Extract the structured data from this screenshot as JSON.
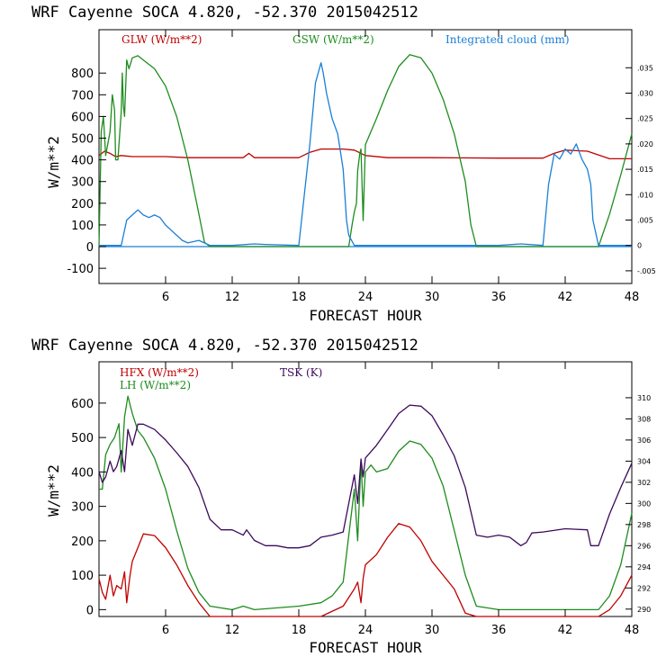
{
  "colors": {
    "red": "#c00000",
    "green": "#1e8c1e",
    "blue": "#1a7fd6",
    "purple": "#3c0a5a",
    "axis": "#000000"
  },
  "chart_data": [
    {
      "type": "line",
      "title": "WRF  Cayenne SOCA   4.820, -52.370  2015042512",
      "xlabel": "FORECAST HOUR",
      "ylabel": "W/m**2",
      "xlim": [
        0,
        48
      ],
      "ylim": [
        -170,
        1000
      ],
      "xticks": [
        6,
        12,
        18,
        24,
        30,
        36,
        42,
        48
      ],
      "yticks": [
        -100,
        0,
        100,
        200,
        300,
        400,
        500,
        600,
        700,
        800
      ],
      "y2lim": [
        -0.0075,
        0.0425
      ],
      "y2ticks": [
        -0.005,
        0,
        0.005,
        0.01,
        0.015,
        0.02,
        0.025,
        0.03,
        0.035
      ],
      "y2ticklabels": [
        "-.005",
        "0",
        ".005",
        ".010",
        ".015",
        ".020",
        ".025",
        ".030",
        ".035"
      ],
      "series": [
        {
          "name": "GLW (W/m**2)",
          "color": "red",
          "axis": "left",
          "x": [
            0,
            0.5,
            1,
            1.5,
            2,
            3,
            6,
            8,
            12,
            13,
            13.5,
            14,
            18,
            19,
            20,
            22,
            23,
            24,
            26,
            30,
            36,
            40,
            41,
            42,
            44,
            46,
            48
          ],
          "y": [
            420,
            440,
            430,
            415,
            420,
            415,
            415,
            410,
            410,
            410,
            430,
            410,
            410,
            435,
            450,
            450,
            445,
            420,
            410,
            410,
            408,
            408,
            430,
            445,
            440,
            405,
            405
          ]
        },
        {
          "name": "GSW (W/m**2)",
          "color": "green",
          "axis": "left",
          "x": [
            0,
            0.2,
            0.4,
            0.6,
            1,
            1.2,
            1.4,
            1.5,
            1.7,
            2,
            2.1,
            2.2,
            2.3,
            2.5,
            2.7,
            3,
            3.5,
            4,
            5,
            6,
            7,
            8,
            9,
            9.5,
            10,
            12,
            18,
            19,
            20,
            21,
            21.5,
            22,
            22.2,
            22.5,
            22.8,
            23,
            23.2,
            23.3,
            23.5,
            23.6,
            23.8,
            24,
            25,
            26,
            27,
            28,
            29,
            30,
            31,
            32,
            33,
            33.5,
            34,
            36,
            44,
            45,
            46,
            47,
            48
          ],
          "y": [
            0,
            530,
            600,
            420,
            530,
            700,
            630,
            400,
            400,
            620,
            800,
            650,
            600,
            860,
            820,
            870,
            880,
            860,
            820,
            740,
            600,
            400,
            150,
            20,
            0,
            0,
            0,
            0,
            0,
            0,
            0,
            0,
            0,
            0,
            100,
            160,
            200,
            350,
            430,
            450,
            120,
            470,
            590,
            720,
            830,
            885,
            870,
            800,
            680,
            520,
            300,
            100,
            0,
            0,
            0,
            0,
            150,
            330,
            520
          ]
        },
        {
          "name": "Integrated cloud (mm)",
          "color": "blue",
          "axis": "right",
          "x": [
            0,
            2,
            2.5,
            3,
            3.5,
            4,
            4.5,
            5,
            5.5,
            6,
            6.5,
            7,
            7.5,
            8,
            9,
            10,
            12,
            14,
            15,
            18,
            19,
            19.5,
            20,
            20.2,
            20.5,
            21,
            21.5,
            22,
            22.3,
            22.5,
            23,
            24,
            36,
            38,
            40,
            40.5,
            41,
            41.5,
            42,
            42.5,
            43,
            43.5,
            44,
            44.3,
            44.5,
            45,
            48
          ],
          "y": [
            0,
            0,
            0.005,
            0.006,
            0.007,
            0.006,
            0.0055,
            0.006,
            0.0055,
            0.004,
            0.003,
            0.002,
            0.001,
            0.0005,
            0.001,
            0,
            0,
            0.0003,
            0.0002,
            0,
            0.02,
            0.032,
            0.036,
            0.034,
            0.03,
            0.025,
            0.022,
            0.015,
            0.005,
            0.002,
            0,
            0,
            0,
            0.0003,
            0,
            0.012,
            0.018,
            0.017,
            0.019,
            0.018,
            0.02,
            0.017,
            0.015,
            0.012,
            0.005,
            0,
            0
          ]
        }
      ]
    },
    {
      "type": "line",
      "title": "WRF  Cayenne SOCA   4.820, -52.370  2015042512",
      "xlabel": "FORECAST HOUR",
      "ylabel": "W/m**2",
      "xlim": [
        0,
        48
      ],
      "ylim": [
        -20,
        720
      ],
      "xticks": [
        6,
        12,
        18,
        24,
        30,
        36,
        42,
        48
      ],
      "yticks": [
        0,
        100,
        200,
        300,
        400,
        500,
        600
      ],
      "y2lim": [
        289.3,
        313.4
      ],
      "y2ticks": [
        290,
        292,
        294,
        296,
        298,
        300,
        302,
        304,
        306,
        308,
        310
      ],
      "series": [
        {
          "name": "HFX (W/m**2)",
          "color": "red",
          "axis": "left",
          "x": [
            0,
            0.3,
            0.6,
            1,
            1.3,
            1.6,
            2,
            2.3,
            2.5,
            2.8,
            3,
            3.5,
            4,
            5,
            6,
            7,
            8,
            9,
            10,
            11,
            20,
            22,
            23,
            23.3,
            23.6,
            23.8,
            24,
            25,
            26,
            27,
            28,
            29,
            30,
            32,
            33,
            34,
            44,
            45,
            46,
            47,
            48
          ],
          "y": [
            90,
            50,
            30,
            100,
            40,
            70,
            60,
            110,
            20,
            100,
            140,
            180,
            220,
            215,
            180,
            130,
            70,
            20,
            -20,
            -20,
            -20,
            10,
            60,
            80,
            20,
            90,
            130,
            160,
            210,
            250,
            240,
            200,
            140,
            60,
            -10,
            -20,
            -20,
            -20,
            0,
            40,
            100
          ]
        },
        {
          "name": "LH (W/m**2)",
          "color": "green",
          "axis": "left",
          "x": [
            0,
            0.3,
            0.6,
            1,
            1.4,
            1.8,
            2,
            2.3,
            2.6,
            3,
            3.5,
            4,
            5,
            6,
            7,
            8,
            9,
            10,
            12,
            13,
            14,
            18,
            20,
            21,
            22,
            23,
            23.3,
            23.6,
            23.8,
            24,
            24.5,
            25,
            26,
            27,
            28,
            29,
            30,
            31,
            32,
            33,
            34,
            36,
            44,
            45,
            46,
            47,
            48
          ],
          "y": [
            350,
            350,
            450,
            480,
            500,
            540,
            400,
            560,
            620,
            570,
            520,
            500,
            440,
            350,
            230,
            120,
            50,
            10,
            0,
            10,
            0,
            10,
            20,
            40,
            80,
            350,
            200,
            430,
            300,
            400,
            420,
            400,
            410,
            460,
            490,
            480,
            440,
            360,
            230,
            100,
            10,
            0,
            0,
            0,
            40,
            130,
            280
          ]
        },
        {
          "name": "TSK (K)",
          "color": "purple",
          "axis": "right",
          "x": [
            0,
            0.3,
            0.6,
            1,
            1.3,
            1.6,
            2,
            2.3,
            2.6,
            3,
            3.5,
            4,
            5,
            6,
            7,
            8,
            9,
            10,
            11,
            12,
            13,
            13.3,
            14,
            15,
            16,
            17,
            18,
            19,
            20,
            21,
            22,
            23,
            23.3,
            23.6,
            23.8,
            24,
            25,
            26,
            27,
            28,
            29,
            30,
            31,
            32,
            33,
            34,
            35,
            36,
            37,
            38,
            38.5,
            39,
            40,
            42,
            44,
            44.3,
            45,
            46,
            47,
            48
          ],
          "y": [
            303,
            302,
            302.5,
            304,
            303,
            303.5,
            305,
            303,
            307,
            305.5,
            307.5,
            307.5,
            307,
            306,
            304.8,
            303.5,
            301.5,
            298.5,
            297.5,
            297.5,
            297,
            297.5,
            296.5,
            296,
            296,
            295.8,
            295.8,
            296,
            296.8,
            297,
            297.3,
            302.7,
            300,
            304.2,
            302.5,
            304.3,
            305.5,
            307,
            308.5,
            309.3,
            309.2,
            308.3,
            306.5,
            304.5,
            301.5,
            297,
            296.8,
            297,
            296.8,
            296,
            296.3,
            297.2,
            297.3,
            297.6,
            297.5,
            296,
            296,
            299,
            301.5,
            303.8
          ]
        }
      ]
    }
  ]
}
